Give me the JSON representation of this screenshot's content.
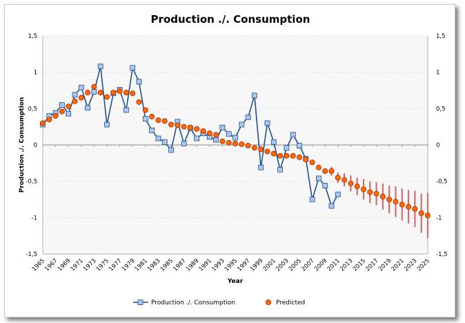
{
  "chart_data": {
    "type": "line",
    "title": "Production ./. Consumption",
    "xlabel": "Year",
    "ylabel": "Production ./. Consumption",
    "xlim": [
      1965,
      2025
    ],
    "ylim": [
      -1.5,
      1.5
    ],
    "y_ticks": [
      1.5,
      1,
      0.5,
      0,
      -0.5,
      -1,
      -1.5
    ],
    "y_tick_labels": [
      "1,5",
      "1",
      "0,5",
      "0",
      "-0,5",
      "-1",
      "-1,5"
    ],
    "x_tick_labels": [
      "1965",
      "1967",
      "1969",
      "1971",
      "1973",
      "1975",
      "1977",
      "1979",
      "1981",
      "1983",
      "1985",
      "1987",
      "1989",
      "1991",
      "1993",
      "1995",
      "1997",
      "1999",
      "2001",
      "2003",
      "2005",
      "2007",
      "2009",
      "2011",
      "2013",
      "2015",
      "2017",
      "2019",
      "2021",
      "2023",
      "2025"
    ],
    "grid": true,
    "legend_position": "bottom",
    "colors": {
      "actual_line": "#1f4e8c",
      "actual_marker": "#a9c8ec",
      "predicted_marker": "#ff6a00",
      "predicted_edge": "#b22000",
      "error_bar": "#c97070",
      "plot_bg": "#f7f7f7"
    },
    "series": [
      {
        "name": "Production ./. Consumption",
        "style": "line-square",
        "x": [
          1965,
          1966,
          1967,
          1968,
          1969,
          1970,
          1971,
          1972,
          1973,
          1974,
          1975,
          1976,
          1977,
          1978,
          1979,
          1980,
          1981,
          1982,
          1983,
          1984,
          1985,
          1986,
          1987,
          1988,
          1989,
          1990,
          1991,
          1992,
          1993,
          1994,
          1995,
          1996,
          1997,
          1998,
          1999,
          2000,
          2001,
          2002,
          2003,
          2004,
          2005,
          2006,
          2007,
          2008,
          2009,
          2010,
          2011
        ],
        "y": [
          0.28,
          0.4,
          0.44,
          0.55,
          0.43,
          0.69,
          0.79,
          0.51,
          0.73,
          1.08,
          0.28,
          0.71,
          0.76,
          0.48,
          1.06,
          0.87,
          0.36,
          0.2,
          0.09,
          0.04,
          -0.07,
          0.32,
          0.02,
          0.23,
          0.09,
          0.16,
          0.11,
          0.07,
          0.24,
          0.15,
          0.1,
          0.28,
          0.38,
          0.68,
          -0.31,
          0.3,
          0.04,
          -0.34,
          -0.04,
          0.14,
          -0.01,
          -0.19,
          -0.75,
          -0.46,
          -0.56,
          -0.84,
          -0.68
        ]
      },
      {
        "name": "Predicted",
        "style": "marker-circle",
        "x": [
          1965,
          1966,
          1967,
          1968,
          1969,
          1970,
          1971,
          1972,
          1973,
          1974,
          1975,
          1976,
          1977,
          1978,
          1979,
          1980,
          1981,
          1982,
          1983,
          1984,
          1985,
          1986,
          1987,
          1988,
          1989,
          1990,
          1991,
          1992,
          1993,
          1994,
          1995,
          1996,
          1997,
          1998,
          1999,
          2000,
          2001,
          2002,
          2003,
          2004,
          2005,
          2006,
          2007,
          2008,
          2009,
          2010,
          2011,
          2012,
          2013,
          2014,
          2015,
          2016,
          2017,
          2018,
          2019,
          2020,
          2021,
          2022,
          2023,
          2024,
          2025
        ],
        "y": [
          0.3,
          0.35,
          0.4,
          0.46,
          0.53,
          0.6,
          0.65,
          0.72,
          0.8,
          0.72,
          0.66,
          0.72,
          0.74,
          0.72,
          0.71,
          0.59,
          0.48,
          0.39,
          0.34,
          0.33,
          0.28,
          0.27,
          0.25,
          0.24,
          0.22,
          0.19,
          0.16,
          0.14,
          0.05,
          0.03,
          0.02,
          0.01,
          -0.01,
          -0.04,
          -0.06,
          -0.09,
          -0.12,
          -0.15,
          -0.15,
          -0.15,
          -0.17,
          -0.2,
          -0.24,
          -0.31,
          -0.36,
          -0.36,
          -0.45,
          -0.48,
          -0.53,
          -0.57,
          -0.61,
          -0.65,
          -0.67,
          -0.71,
          -0.75,
          -0.78,
          -0.82,
          -0.85,
          -0.88,
          -0.94,
          -0.97
        ],
        "error": [
          0,
          0,
          0,
          0,
          0,
          0,
          0,
          0,
          0,
          0,
          0,
          0,
          0,
          0,
          0,
          0,
          0,
          0,
          0,
          0,
          0,
          0,
          0,
          0,
          0,
          0,
          0,
          0,
          0,
          0,
          0,
          0,
          0,
          0,
          0,
          0,
          0,
          0,
          0,
          0,
          0,
          0,
          0,
          0,
          0,
          0.06,
          0.07,
          0.09,
          0.11,
          0.12,
          0.14,
          0.15,
          0.16,
          0.18,
          0.19,
          0.21,
          0.22,
          0.23,
          0.25,
          0.27,
          0.31
        ]
      }
    ]
  },
  "legend": {
    "items": [
      {
        "label": "Production ./. Consumption"
      },
      {
        "label": "Predicted"
      }
    ]
  }
}
